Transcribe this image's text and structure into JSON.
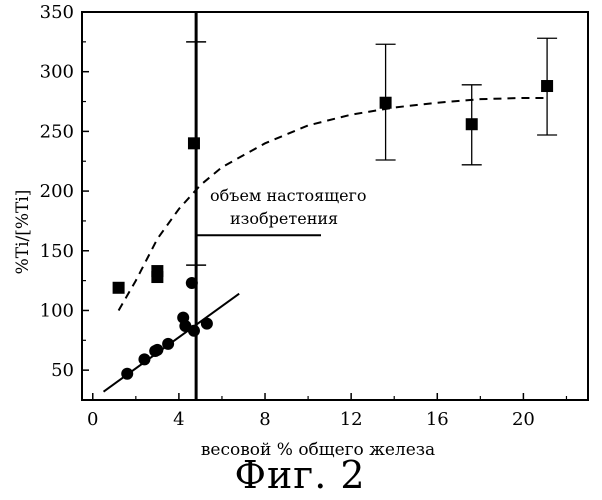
{
  "chart_data": {
    "type": "scatter",
    "title": "",
    "xlabel": "весовой % общего железа",
    "ylabel": "%Ti/[%Ti]",
    "xlim": [
      -0.5,
      23
    ],
    "ylim": [
      25,
      350
    ],
    "x_ticks": [
      0,
      4,
      8,
      12,
      16,
      20
    ],
    "y_ticks": [
      50,
      100,
      150,
      200,
      250,
      300,
      350
    ],
    "grid": false,
    "legend": "none",
    "series": [
      {
        "marker": "square",
        "points": [
          {
            "x": 1.2,
            "y": 119
          },
          {
            "x": 3.0,
            "y": 133
          },
          {
            "x": 3.0,
            "y": 128
          },
          {
            "x": 4.7,
            "y": 240
          },
          {
            "x": 13.6,
            "y": 274,
            "err_low": 226,
            "err_high": 323
          },
          {
            "x": 17.6,
            "y": 256,
            "err_low": 222,
            "err_high": 289
          },
          {
            "x": 21.1,
            "y": 288,
            "err_low": 247,
            "err_high": 328
          }
        ]
      },
      {
        "marker": "circle",
        "points": [
          {
            "x": 1.6,
            "y": 47
          },
          {
            "x": 2.4,
            "y": 59
          },
          {
            "x": 2.9,
            "y": 66
          },
          {
            "x": 3.0,
            "y": 67
          },
          {
            "x": 3.5,
            "y": 72
          },
          {
            "x": 4.2,
            "y": 94
          },
          {
            "x": 4.3,
            "y": 87
          },
          {
            "x": 4.6,
            "y": 123
          },
          {
            "x": 4.7,
            "y": 83
          },
          {
            "x": 5.3,
            "y": 89
          }
        ]
      }
    ],
    "fit_curves": [
      {
        "style": "dashed",
        "points": [
          [
            1.2,
            100
          ],
          [
            2,
            125
          ],
          [
            3,
            160
          ],
          [
            4,
            185
          ],
          [
            5,
            205
          ],
          [
            6,
            220
          ],
          [
            8,
            240
          ],
          [
            10,
            255
          ],
          [
            12,
            264
          ],
          [
            14,
            270
          ],
          [
            16,
            274
          ],
          [
            18,
            277
          ],
          [
            20,
            278
          ],
          [
            21,
            278
          ]
        ]
      },
      {
        "style": "solid",
        "points": [
          [
            0.5,
            32
          ],
          [
            6.8,
            114
          ]
        ]
      }
    ],
    "reference_lines": [
      {
        "type": "vertical",
        "x": 4.8,
        "y_from": 25,
        "y_to": 350,
        "errorbar": {
          "low": 138,
          "high": 325
        }
      },
      {
        "type": "horizontal",
        "y": 163,
        "x_from": 4.8,
        "x_to": 10.6
      }
    ],
    "annotation": {
      "lines": [
        "объем настоящего",
        "изобретения"
      ],
      "x": 6.3,
      "y": 192
    }
  },
  "caption": "Фиг. 2"
}
